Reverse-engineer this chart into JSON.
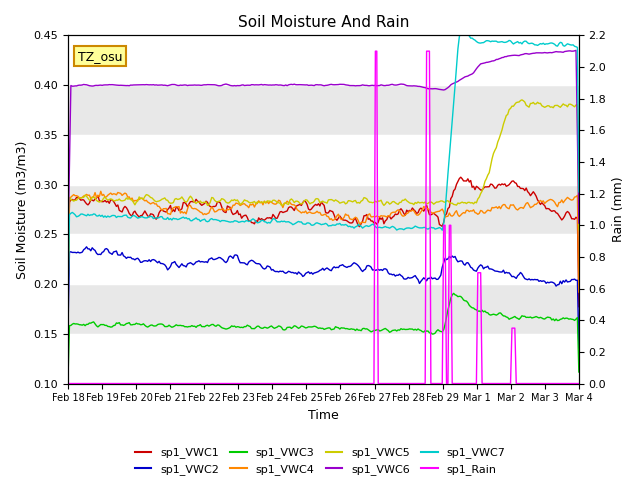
{
  "title": "Soil Moisture And Rain",
  "xlabel": "Time",
  "ylabel_left": "Soil Moisture (m3/m3)",
  "ylabel_right": "Rain (mm)",
  "ylim_left": [
    0.1,
    0.45
  ],
  "ylim_right": [
    0.0,
    2.2
  ],
  "yticks_left": [
    0.1,
    0.15,
    0.2,
    0.25,
    0.3,
    0.35,
    0.4,
    0.45
  ],
  "yticks_right": [
    0.0,
    0.2,
    0.4,
    0.6,
    0.8,
    1.0,
    1.2,
    1.4,
    1.6,
    1.8,
    2.0,
    2.2
  ],
  "annotation": "TZ_osu",
  "annotation_bbox": {
    "facecolor": "#FFFF99",
    "edgecolor": "#CC8800",
    "linewidth": 1.5
  },
  "bg_color": "#E8E8E8",
  "legend_colors": {
    "sp1_VWC1": "#CC0000",
    "sp1_VWC2": "#0000CC",
    "sp1_VWC3": "#00CC00",
    "sp1_VWC4": "#FF8800",
    "sp1_VWC5": "#CCCC00",
    "sp1_VWC6": "#9900CC",
    "sp1_VWC7": "#00CCCC",
    "sp1_Rain": "#FF00FF"
  },
  "xticklabels": [
    "Feb 18",
    "Feb 19",
    "Feb 20",
    "Feb 21",
    "Feb 22",
    "Feb 23",
    "Feb 24",
    "Feb 25",
    "Feb 26",
    "Feb 27",
    "Feb 28",
    "Feb 29",
    "Mar 1",
    "Mar 2",
    "Mar 3",
    "Mar 4"
  ],
  "n_days": 15
}
